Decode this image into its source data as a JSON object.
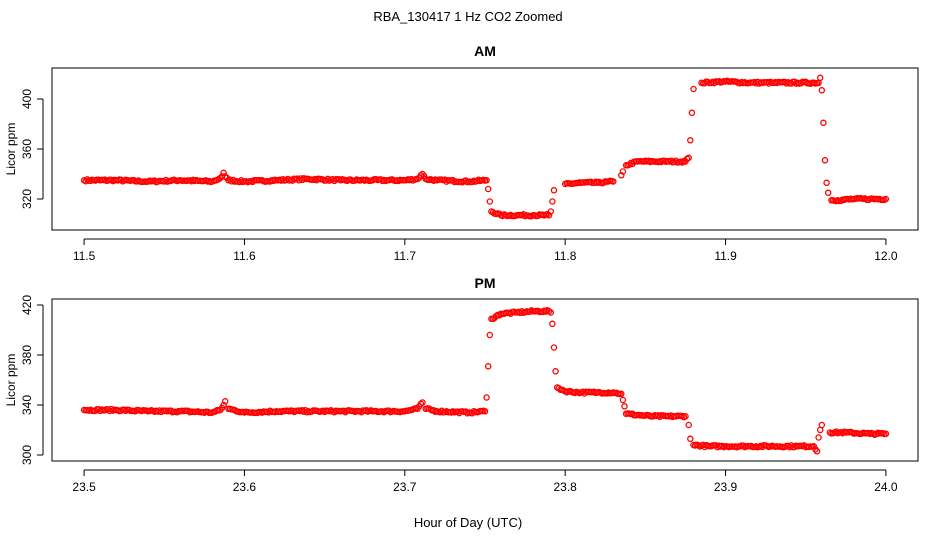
{
  "title": "RBA_130417  1 Hz CO2 Zoomed",
  "x_axis_label": "Hour of Day (UTC)",
  "colors": {
    "points": "#ff0000",
    "axes": "#000000",
    "background": "#ffffff"
  },
  "chart_data": [
    {
      "type": "scatter",
      "title": "AM",
      "ylabel": "Licor ppm",
      "xlabel": "Hour of Day (UTC)",
      "xlim": [
        11.48,
        12.02
      ],
      "ylim": [
        300,
        420
      ],
      "xticks": [
        11.5,
        11.6,
        11.7,
        11.8,
        11.9,
        12.0
      ],
      "xtick_labels": [
        "11.5",
        "11.6",
        "11.7",
        "11.8",
        "11.9",
        "12.0"
      ],
      "yticks": [
        320,
        360,
        400
      ],
      "ytick_labels": [
        "320",
        "360",
        "400"
      ],
      "grid": false,
      "marker": "open-circle",
      "series": [
        {
          "points": [
            [
              11.5,
              335
            ],
            [
              11.52,
              335
            ],
            [
              11.54,
              334
            ],
            [
              11.56,
              335
            ],
            [
              11.58,
              334
            ],
            [
              11.584,
              336
            ],
            [
              11.586,
              338
            ],
            [
              11.587,
              341
            ],
            [
              11.588,
              338
            ],
            [
              11.59,
              335
            ],
            [
              11.6,
              334
            ],
            [
              11.62,
              335
            ],
            [
              11.64,
              336
            ],
            [
              11.66,
              335
            ],
            [
              11.68,
              335
            ],
            [
              11.7,
              335
            ],
            [
              11.708,
              336
            ],
            [
              11.71,
              339
            ],
            [
              11.711,
              340
            ],
            [
              11.713,
              336
            ],
            [
              11.72,
              335
            ],
            [
              11.74,
              334
            ],
            [
              11.751,
              335
            ],
            [
              11.752,
              328
            ],
            [
              11.753,
              318
            ],
            [
              11.754,
              310
            ],
            [
              11.76,
              307
            ],
            [
              11.77,
              307
            ],
            [
              11.78,
              307
            ],
            [
              11.79,
              307
            ],
            [
              11.791,
              310
            ],
            [
              11.792,
              318
            ],
            [
              11.793,
              327
            ],
            [
              11.8,
              332
            ],
            [
              11.81,
              333
            ],
            [
              11.82,
              333
            ],
            [
              11.83,
              334
            ],
            [
              11.835,
              339
            ],
            [
              11.836,
              342
            ],
            [
              11.838,
              347
            ],
            [
              11.845,
              350
            ],
            [
              11.855,
              350
            ],
            [
              11.865,
              350
            ],
            [
              11.875,
              350
            ],
            [
              11.877,
              353
            ],
            [
              11.878,
              367
            ],
            [
              11.879,
              389
            ],
            [
              11.88,
              408
            ],
            [
              11.885,
              413
            ],
            [
              11.9,
              414
            ],
            [
              11.915,
              413
            ],
            [
              11.93,
              413
            ],
            [
              11.945,
              413
            ],
            [
              11.958,
              413
            ],
            [
              11.959,
              417
            ],
            [
              11.96,
              407
            ],
            [
              11.961,
              381
            ],
            [
              11.962,
              351
            ],
            [
              11.963,
              333
            ],
            [
              11.964,
              325
            ],
            [
              11.966,
              319
            ],
            [
              11.97,
              319
            ],
            [
              11.98,
              320
            ],
            [
              11.99,
              320
            ],
            [
              12.0,
              320
            ]
          ]
        }
      ]
    },
    {
      "type": "scatter",
      "title": "PM",
      "ylabel": "Licor ppm",
      "xlabel": "Hour of Day (UTC)",
      "xlim": [
        23.48,
        24.02
      ],
      "ylim": [
        300,
        420
      ],
      "xticks": [
        23.5,
        23.6,
        23.7,
        23.8,
        23.9,
        24.0
      ],
      "xtick_labels": [
        "23.5",
        "23.6",
        "23.7",
        "23.8",
        "23.9",
        "24.0"
      ],
      "yticks": [
        300,
        340,
        380,
        420
      ],
      "ytick_labels": [
        "300",
        "340",
        "380",
        "420"
      ],
      "grid": false,
      "marker": "open-circle",
      "series": [
        {
          "points": [
            [
              23.5,
              336
            ],
            [
              23.52,
              336
            ],
            [
              23.54,
              335
            ],
            [
              23.56,
              335
            ],
            [
              23.58,
              334
            ],
            [
              23.585,
              336
            ],
            [
              23.587,
              340
            ],
            [
              23.588,
              343
            ],
            [
              23.59,
              337
            ],
            [
              23.6,
              334
            ],
            [
              23.62,
              335
            ],
            [
              23.64,
              335
            ],
            [
              23.66,
              335
            ],
            [
              23.68,
              335
            ],
            [
              23.7,
              335
            ],
            [
              23.708,
              337
            ],
            [
              23.71,
              341
            ],
            [
              23.711,
              342
            ],
            [
              23.713,
              337
            ],
            [
              23.72,
              335
            ],
            [
              23.74,
              334
            ],
            [
              23.75,
              335
            ],
            [
              23.751,
              346
            ],
            [
              23.752,
              371
            ],
            [
              23.753,
              396
            ],
            [
              23.754,
              409
            ],
            [
              23.76,
              413
            ],
            [
              23.77,
              414
            ],
            [
              23.78,
              415
            ],
            [
              23.79,
              415
            ],
            [
              23.791,
              414
            ],
            [
              23.792,
              405
            ],
            [
              23.793,
              386
            ],
            [
              23.794,
              367
            ],
            [
              23.795,
              354
            ],
            [
              23.8,
              351
            ],
            [
              23.81,
              350
            ],
            [
              23.82,
              350
            ],
            [
              23.83,
              350
            ],
            [
              23.835,
              349
            ],
            [
              23.836,
              344
            ],
            [
              23.837,
              339
            ],
            [
              23.838,
              333
            ],
            [
              23.845,
              332
            ],
            [
              23.855,
              331
            ],
            [
              23.865,
              331
            ],
            [
              23.875,
              331
            ],
            [
              23.877,
              324
            ],
            [
              23.878,
              313
            ],
            [
              23.88,
              308
            ],
            [
              23.89,
              307
            ],
            [
              23.9,
              307
            ],
            [
              23.915,
              307
            ],
            [
              23.93,
              307
            ],
            [
              23.945,
              307
            ],
            [
              23.955,
              307
            ],
            [
              23.957,
              303
            ],
            [
              23.958,
              314
            ],
            [
              23.959,
              320
            ],
            [
              23.96,
              324
            ],
            [
              23.965,
              318
            ],
            [
              23.975,
              318
            ],
            [
              23.99,
              317
            ],
            [
              24.0,
              317
            ]
          ]
        }
      ]
    }
  ]
}
